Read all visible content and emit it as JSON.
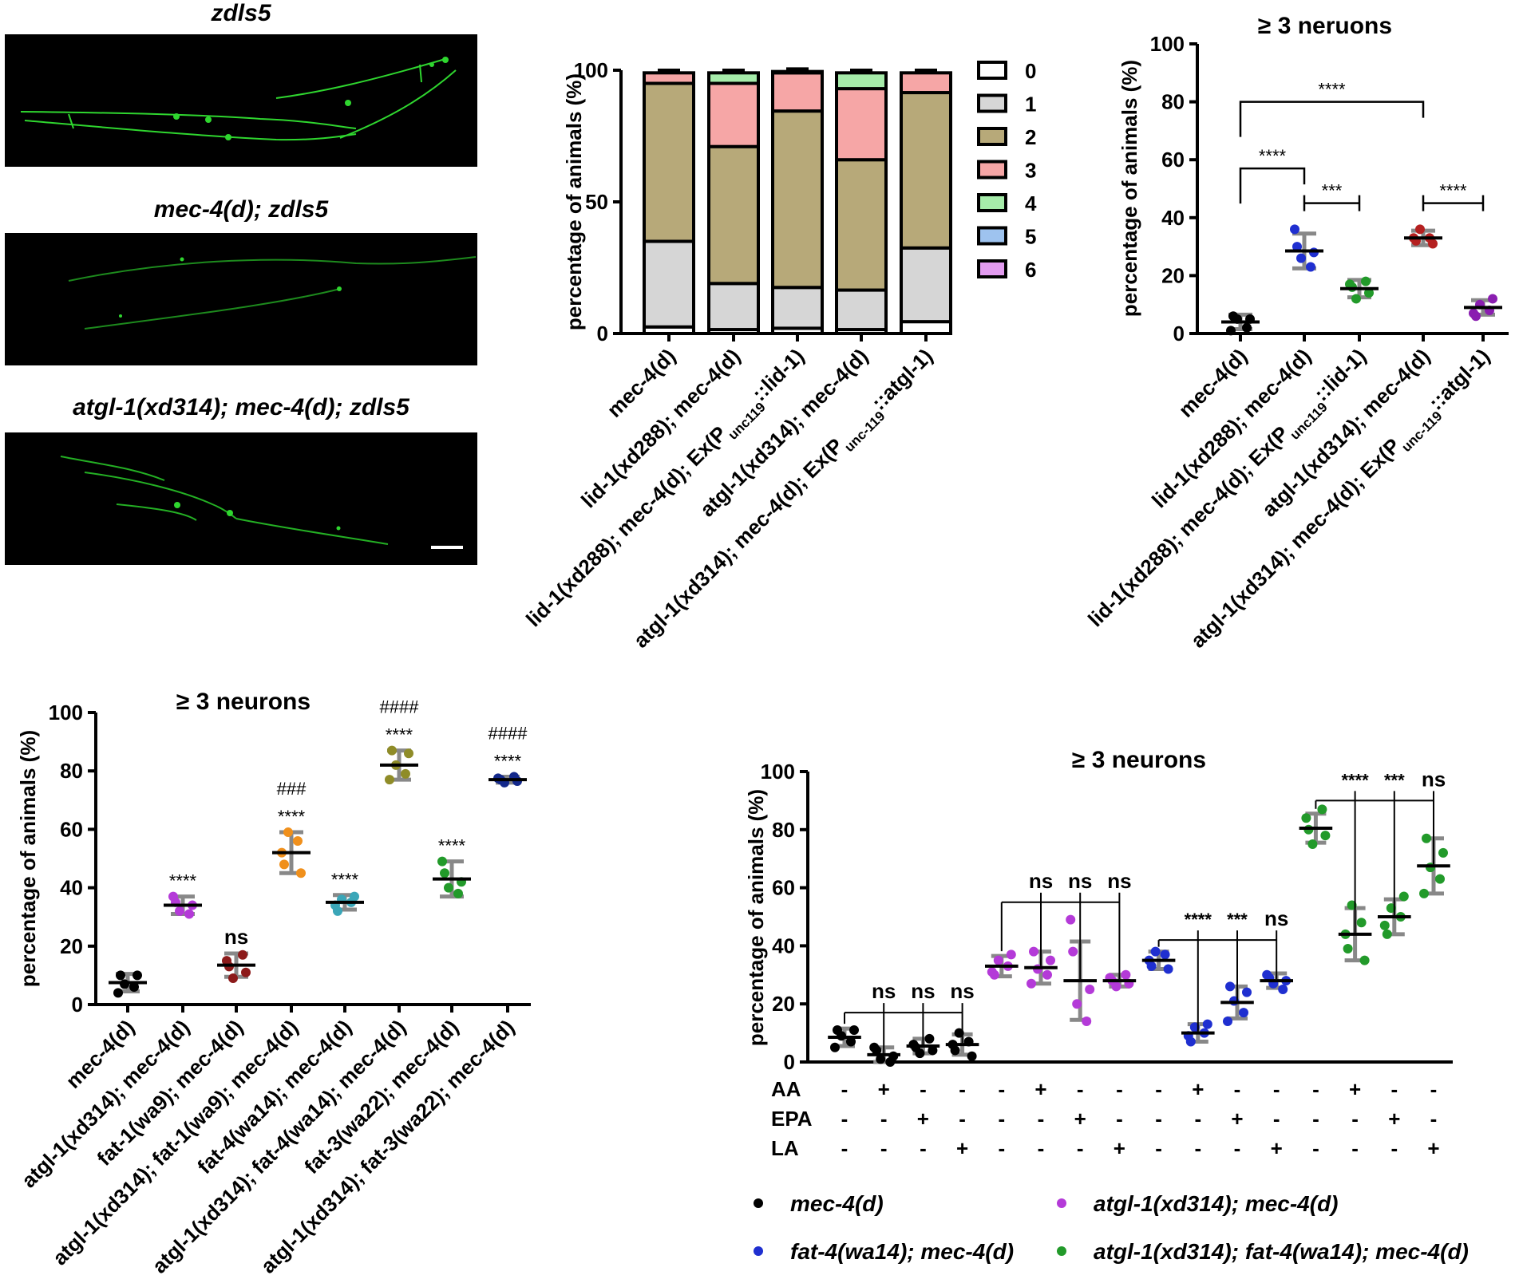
{
  "micrographs": [
    {
      "label": "zdls5"
    },
    {
      "label": "mec-4(d); zdls5"
    },
    {
      "label": "atgl-1(xd314); mec-4(d); zdls5"
    }
  ],
  "colors": {
    "neuron_fluorescence": "#2fd62f",
    "black": "#000000",
    "blue": "#1f2fd0",
    "green": "#229a2a",
    "red": "#b52020",
    "purple": "#8a1eb0",
    "magenta": "#b43ad8",
    "dark_red": "#8c1a1a",
    "orange": "#f0901c",
    "teal": "#3aa6b8",
    "olive": "#8f8c28",
    "navy": "#13288a",
    "stack_0": "#ffffff",
    "stack_1": "#d6d6d6",
    "stack_2": "#b7a979",
    "stack_3": "#f6a6a6",
    "stack_4": "#a6ecaa",
    "stack_5": "#9ec3ef",
    "stack_6": "#e29bef"
  },
  "chart_data": [
    {
      "id": "stacked",
      "type": "bar",
      "stacked": true,
      "title": "",
      "xlabel": "",
      "ylabel": "percentage of animals (%)",
      "ylim": [
        0,
        100
      ],
      "yticks": [
        "0",
        "50",
        "100"
      ],
      "categories": [
        {
          "pre": "mec-4(d)",
          "sub": "",
          "post": ""
        },
        {
          "pre": "lid-1(xd288); mec-4(d)",
          "sub": "",
          "post": ""
        },
        {
          "pre": "lid-1(xd288); mec-4(d); Ex(P",
          "sub": "unc119",
          "post": "::lid-1)"
        },
        {
          "pre": "atgl-1(xd314); mec-4(d)",
          "sub": "",
          "post": ""
        },
        {
          "pre": "atgl-1(xd314); mec-4(d); Ex(P",
          "sub": "unc-119",
          "post": "::atgl-1)"
        }
      ],
      "legend_position": "right",
      "series": [
        {
          "name": "0",
          "values": [
            2.5,
            1.5,
            2,
            1.5,
            4.5
          ],
          "err": [
            2,
            2,
            3,
            2,
            2
          ]
        },
        {
          "name": "1",
          "values": [
            32.5,
            17.5,
            15.5,
            15,
            28
          ],
          "err": [
            5,
            3,
            2,
            2,
            2
          ]
        },
        {
          "name": "2",
          "values": [
            60,
            52,
            67,
            49.5,
            59
          ],
          "err": [
            1,
            2,
            4,
            3,
            2
          ]
        },
        {
          "name": "3",
          "values": [
            4,
            24,
            14.5,
            27,
            7.5
          ],
          "err": [
            1,
            1,
            1,
            1,
            1
          ]
        },
        {
          "name": "4",
          "values": [
            0,
            4,
            0.5,
            6,
            0
          ],
          "err": [
            0,
            1,
            1,
            1,
            0
          ]
        },
        {
          "name": "5",
          "values": [
            0,
            0,
            0,
            0,
            0
          ],
          "err": [
            0,
            0,
            0,
            0,
            0
          ]
        },
        {
          "name": "6",
          "values": [
            0,
            0,
            0,
            0,
            0
          ],
          "err": [
            0,
            0,
            0,
            0,
            0
          ]
        }
      ]
    },
    {
      "id": "scatter1",
      "type": "scatter",
      "title": "≥ 3 neruons",
      "xlabel": "",
      "ylabel": "percentage of animals (%)",
      "ylim": [
        0,
        100
      ],
      "yticks": [
        "0",
        "20",
        "40",
        "60",
        "80",
        "100"
      ],
      "categories": [
        {
          "pre": "mec-4(d)",
          "sub": "",
          "post": ""
        },
        {
          "pre": "lid-1(xd288); mec-4(d)",
          "sub": "",
          "post": ""
        },
        {
          "pre": "lid-1(xd288); mec-4(d); Ex(P",
          "sub": "unc119",
          "post": "::lid-1)"
        },
        {
          "pre": "atgl-1(xd314); mec-4(d)",
          "sub": "",
          "post": ""
        },
        {
          "pre": "atgl-1(xd314); mec-4(d); Ex(P",
          "sub": "unc-119",
          "post": "::atgl-1)"
        }
      ],
      "groups": [
        {
          "color": "#000000",
          "mean": 4,
          "sd": 2.5,
          "points": [
            1,
            2,
            5,
            5,
            6
          ]
        },
        {
          "color": "#1f2fd0",
          "mean": 28.5,
          "sd": 6,
          "points": [
            23,
            26,
            28,
            30,
            36
          ]
        },
        {
          "color": "#229a2a",
          "mean": 15.5,
          "sd": 3,
          "points": [
            12,
            14,
            16,
            17,
            18
          ]
        },
        {
          "color": "#b52020",
          "mean": 33,
          "sd": 2.5,
          "points": [
            31,
            32,
            33,
            33,
            36
          ]
        },
        {
          "color": "#8a1eb0",
          "mean": 9,
          "sd": 2.5,
          "points": [
            6,
            7,
            8,
            10,
            12
          ]
        }
      ],
      "brackets": [
        {
          "from": 0,
          "to": 3,
          "label": "****",
          "y": 80
        },
        {
          "from": 0,
          "to": 1,
          "label": "****",
          "y": 57
        },
        {
          "from": 1,
          "to": 2,
          "label": "***",
          "y": 45
        },
        {
          "from": 3,
          "to": 4,
          "label": "****",
          "y": 45
        }
      ]
    },
    {
      "id": "scatter2",
      "type": "scatter",
      "title": "≥ 3 neurons",
      "xlabel": "",
      "ylabel": "percentage of animals (%)",
      "ylim": [
        0,
        100
      ],
      "yticks": [
        "0",
        "20",
        "40",
        "60",
        "80",
        "100"
      ],
      "categories": [
        {
          "pre": "mec-4(d)",
          "sub": "",
          "post": ""
        },
        {
          "pre": "atgl-1(xd314); mec-4(d)",
          "sub": "",
          "post": ""
        },
        {
          "pre": "fat-1(wa9); mec-4(d)",
          "sub": "",
          "post": ""
        },
        {
          "pre": "atgl-1(xd314); fat-1(wa9); mec-4(d)",
          "sub": "",
          "post": ""
        },
        {
          "pre": "fat-4(wa14); mec-4(d)",
          "sub": "",
          "post": ""
        },
        {
          "pre": "atgl-1(xd314); fat-4(wa14); mec-4(d)",
          "sub": "",
          "post": ""
        },
        {
          "pre": "fat-3(wa22); mec-4(d)",
          "sub": "",
          "post": ""
        },
        {
          "pre": "atgl-1(xd314); fat-3(wa22); mec-4(d)",
          "sub": "",
          "post": ""
        }
      ],
      "groups": [
        {
          "color": "#000000",
          "mean": 7.5,
          "sd": 3,
          "points": [
            4,
            6,
            7,
            10,
            10
          ],
          "labels": []
        },
        {
          "color": "#b43ad8",
          "mean": 34,
          "sd": 3,
          "points": [
            31,
            32,
            34,
            35,
            37
          ],
          "labels": [
            "****"
          ]
        },
        {
          "color": "#8c1a1a",
          "mean": 13.5,
          "sd": 4,
          "points": [
            9,
            11,
            13,
            15,
            17
          ],
          "labels": [
            "ns"
          ]
        },
        {
          "color": "#f0901c",
          "mean": 52,
          "sd": 7,
          "points": [
            45,
            48,
            52,
            56,
            59
          ],
          "labels": [
            "****",
            "###"
          ]
        },
        {
          "color": "#3aa6b8",
          "mean": 35,
          "sd": 2.5,
          "points": [
            32,
            34,
            35,
            36,
            37
          ],
          "labels": [
            "****"
          ]
        },
        {
          "color": "#8f8c28",
          "mean": 82,
          "sd": 5,
          "points": [
            77,
            79,
            82,
            86,
            87
          ],
          "labels": [
            "****",
            "####"
          ]
        },
        {
          "color": "#229a2a",
          "mean": 43,
          "sd": 6,
          "points": [
            38,
            40,
            42,
            45,
            49
          ],
          "labels": [
            "****"
          ]
        },
        {
          "color": "#13288a",
          "mean": 77,
          "sd": 1,
          "points": [
            76,
            76.5,
            77,
            77.5,
            78
          ],
          "labels": [
            "****",
            "####"
          ]
        }
      ]
    },
    {
      "id": "scatter3",
      "type": "scatter",
      "title": "≥ 3 neurons",
      "xlabel": "",
      "ylabel": "percentage of animals (%)",
      "ylim": [
        0,
        100
      ],
      "yticks": [
        "0",
        "20",
        "40",
        "60",
        "80",
        "100"
      ],
      "treatment_rows": [
        {
          "label": "AA",
          "marks": [
            "-",
            "+",
            "-",
            "-",
            "-",
            "+",
            "-",
            "-",
            "-",
            "+",
            "-",
            "-",
            "-",
            "+",
            "-",
            "-"
          ]
        },
        {
          "label": "EPA",
          "marks": [
            "-",
            "-",
            "+",
            "-",
            "-",
            "-",
            "+",
            "-",
            "-",
            "-",
            "+",
            "-",
            "-",
            "-",
            "+",
            "-"
          ]
        },
        {
          "label": "LA",
          "marks": [
            "-",
            "-",
            "-",
            "+",
            "-",
            "-",
            "-",
            "+",
            "-",
            "-",
            "-",
            "+",
            "-",
            "-",
            "-",
            "+"
          ]
        }
      ],
      "groups": [
        {
          "color": "#000000",
          "mean": 8.5,
          "sd": 3,
          "points": [
            5,
            7,
            9,
            11,
            11
          ]
        },
        {
          "color": "#000000",
          "mean": 2.5,
          "sd": 2.5,
          "points": [
            0,
            1,
            2,
            4,
            5
          ]
        },
        {
          "color": "#000000",
          "mean": 5.5,
          "sd": 2.5,
          "points": [
            3,
            4,
            5,
            6,
            8
          ]
        },
        {
          "color": "#000000",
          "mean": 6,
          "sd": 3.5,
          "points": [
            2,
            4,
            6,
            7,
            10
          ]
        },
        {
          "color": "#b43ad8",
          "mean": 33,
          "sd": 3.5,
          "points": [
            30,
            31,
            33,
            35,
            37
          ]
        },
        {
          "color": "#b43ad8",
          "mean": 32.5,
          "sd": 5.5,
          "points": [
            27,
            30,
            32,
            35,
            38
          ]
        },
        {
          "color": "#b43ad8",
          "mean": 28,
          "sd": 13.5,
          "points": [
            14,
            20,
            25,
            38,
            49
          ]
        },
        {
          "color": "#b43ad8",
          "mean": 28,
          "sd": 2,
          "points": [
            26,
            27,
            28,
            29,
            30
          ]
        },
        {
          "color": "#1f2fd0",
          "mean": 35,
          "sd": 3,
          "points": [
            32,
            33,
            35,
            37,
            38
          ]
        },
        {
          "color": "#1f2fd0",
          "mean": 10,
          "sd": 3,
          "points": [
            7,
            9,
            10,
            12,
            13
          ]
        },
        {
          "color": "#1f2fd0",
          "mean": 20.5,
          "sd": 5.5,
          "points": [
            14,
            17,
            21,
            24,
            26
          ]
        },
        {
          "color": "#1f2fd0",
          "mean": 28,
          "sd": 2.5,
          "points": [
            25,
            27,
            28,
            29,
            30
          ]
        },
        {
          "color": "#229a2a",
          "mean": 80.5,
          "sd": 5,
          "points": [
            75,
            78,
            80,
            84,
            87
          ]
        },
        {
          "color": "#229a2a",
          "mean": 44,
          "sd": 9,
          "points": [
            35,
            39,
            44,
            48,
            54
          ]
        },
        {
          "color": "#229a2a",
          "mean": 50,
          "sd": 6,
          "points": [
            44,
            47,
            50,
            53,
            57
          ]
        },
        {
          "color": "#229a2a",
          "mean": 67.5,
          "sd": 9.5,
          "points": [
            58,
            63,
            67,
            72,
            77
          ]
        }
      ],
      "comparisons": [
        {
          "ref": 0,
          "targets": [
            1,
            2,
            3
          ],
          "labels": [
            "ns",
            "ns",
            "ns"
          ],
          "y": 17
        },
        {
          "ref": 4,
          "targets": [
            5,
            6,
            7
          ],
          "labels": [
            "ns",
            "ns",
            "ns"
          ],
          "y": 55
        },
        {
          "ref": 8,
          "targets": [
            9,
            10,
            11
          ],
          "labels": [
            "****",
            "***",
            "ns"
          ],
          "y": 42
        },
        {
          "ref": 12,
          "targets": [
            13,
            14,
            15
          ],
          "labels": [
            "****",
            "***",
            "ns"
          ],
          "y": 90
        }
      ],
      "legend": [
        {
          "label": "mec-4(d)",
          "color": "#000000"
        },
        {
          "label": "atgl-1(xd314); mec-4(d)",
          "color": "#b43ad8"
        },
        {
          "label": "fat-4(wa14); mec-4(d)",
          "color": "#1f2fd0"
        },
        {
          "label": "atgl-1(xd314); fat-4(wa14); mec-4(d)",
          "color": "#229a2a"
        }
      ]
    }
  ]
}
